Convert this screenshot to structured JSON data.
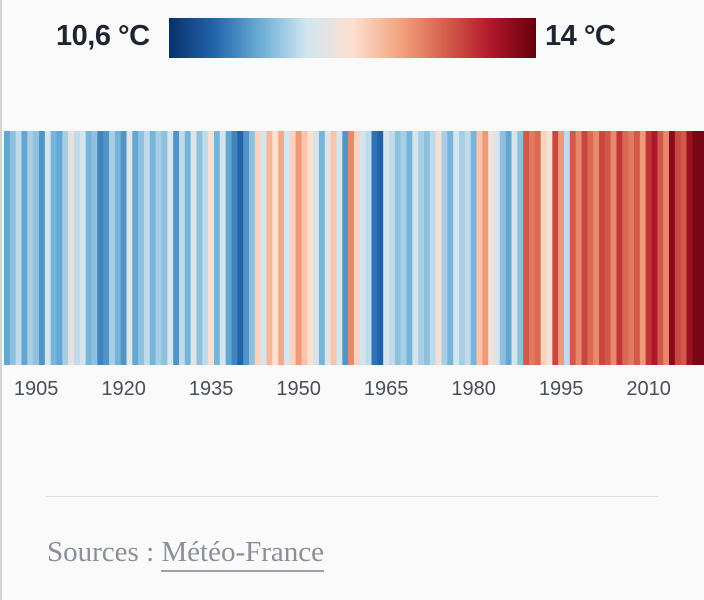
{
  "legend": {
    "min_label": "10,6 °C",
    "max_label": "14 °C",
    "min_value": 10.6,
    "max_value": 14,
    "gradient_colors": [
      "#08306b",
      "#2166ac",
      "#6baed6",
      "#d1e5f0",
      "#fde0d0",
      "#f4a582",
      "#d6604d",
      "#b2182b",
      "#67000d"
    ]
  },
  "chart_data": {
    "type": "heatmap",
    "title": "",
    "x_start": 1900,
    "x_end": 2019,
    "xticks": [
      "1905",
      "1920",
      "1935",
      "1950",
      "1965",
      "1980",
      "1995",
      "2010"
    ],
    "color_range": [
      10.6,
      14
    ],
    "unit": "°C",
    "years": [
      1900,
      1901,
      1902,
      1903,
      1904,
      1905,
      1906,
      1907,
      1908,
      1909,
      1910,
      1911,
      1912,
      1913,
      1914,
      1915,
      1916,
      1917,
      1918,
      1919,
      1920,
      1921,
      1922,
      1923,
      1924,
      1925,
      1926,
      1927,
      1928,
      1929,
      1930,
      1931,
      1932,
      1933,
      1934,
      1935,
      1936,
      1937,
      1938,
      1939,
      1940,
      1941,
      1942,
      1943,
      1944,
      1945,
      1946,
      1947,
      1948,
      1949,
      1950,
      1951,
      1952,
      1953,
      1954,
      1955,
      1956,
      1957,
      1958,
      1959,
      1960,
      1961,
      1962,
      1963,
      1964,
      1965,
      1966,
      1967,
      1968,
      1969,
      1970,
      1971,
      1972,
      1973,
      1974,
      1975,
      1976,
      1977,
      1978,
      1979,
      1980,
      1981,
      1982,
      1983,
      1984,
      1985,
      1986,
      1987,
      1988,
      1989,
      1990,
      1991,
      1992,
      1993,
      1994,
      1995,
      1996,
      1997,
      1998,
      1999,
      2000,
      2001,
      2002,
      2003,
      2004,
      2005,
      2006,
      2007,
      2008,
      2009,
      2010,
      2011,
      2012,
      2013,
      2014,
      2015,
      2016,
      2017,
      2018,
      2019
    ],
    "values": [
      11.4,
      11.6,
      11.8,
      11.4,
      11.7,
      11.6,
      11.3,
      11.9,
      11.5,
      11.4,
      11.7,
      12.1,
      11.8,
      11.9,
      11.5,
      11.6,
      11.2,
      11.3,
      11.7,
      11.5,
      11.3,
      12.0,
      11.4,
      11.6,
      11.8,
      11.5,
      11.7,
      11.6,
      11.9,
      11.3,
      11.8,
      11.5,
      12.0,
      11.6,
      11.8,
      12.2,
      11.5,
      11.9,
      11.4,
      11.2,
      11.0,
      11.3,
      11.6,
      12.4,
      11.9,
      12.6,
      12.3,
      12.7,
      11.9,
      12.4,
      12.8,
      12.5,
      12.3,
      11.9,
      11.5,
      12.0,
      12.5,
      11.9,
      11.3,
      12.9,
      12.4,
      11.9,
      11.8,
      11.1,
      11.0,
      11.9,
      11.8,
      11.6,
      11.7,
      11.5,
      11.9,
      11.7,
      11.6,
      11.8,
      12.2,
      11.7,
      11.5,
      11.9,
      11.7,
      11.8,
      11.5,
      12.5,
      12.8,
      12.2,
      11.9,
      11.6,
      11.4,
      11.9,
      11.6,
      13.2,
      13.0,
      13.1,
      12.4,
      12.2,
      13.3,
      12.8,
      11.8,
      13.2,
      12.9,
      13.3,
      13.1,
      12.9,
      13.3,
      13.2,
      12.9,
      13.4,
      13.1,
      13.0,
      13.2,
      12.8,
      13.4,
      13.6,
      13.2,
      12.9,
      13.8,
      13.3,
      13.2,
      13.7,
      13.9,
      13.9
    ]
  },
  "footer": {
    "sources_label": "Sources : ",
    "source_link": "Météo-France"
  }
}
